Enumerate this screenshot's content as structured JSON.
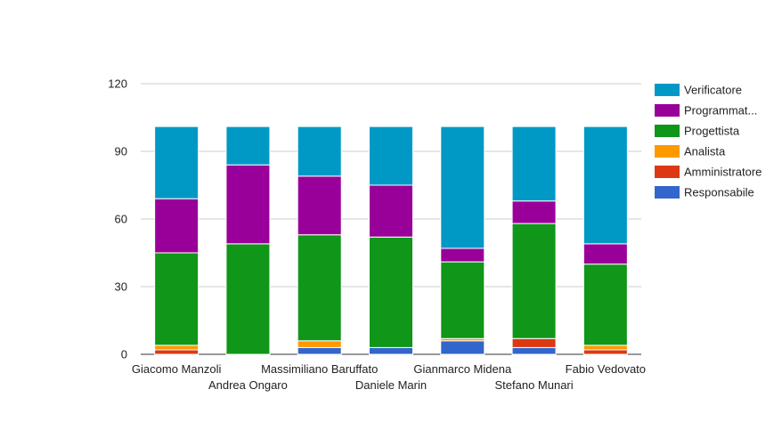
{
  "chart_data": {
    "type": "bar",
    "stacked": true,
    "categories": [
      "Giacomo Manzoli",
      "Andrea Ongaro",
      "Massimiliano Baruffato",
      "Daniele Marin",
      "Gianmarco Midena",
      "Stefano Munari",
      "Fabio Vedovato"
    ],
    "series": [
      {
        "name": "Responsabile",
        "color": "#3366cc",
        "values": [
          0,
          0,
          3,
          3,
          6,
          3,
          0
        ]
      },
      {
        "name": "Amministratore",
        "color": "#dc3912",
        "values": [
          2,
          0,
          0,
          0,
          0,
          4,
          2
        ]
      },
      {
        "name": "Analista",
        "color": "#ff9900",
        "values": [
          2,
          0,
          3,
          0,
          1,
          0,
          2
        ]
      },
      {
        "name": "Progettista",
        "color": "#109618",
        "values": [
          41,
          49,
          47,
          49,
          34,
          51,
          36
        ]
      },
      {
        "name": "Programmat...",
        "color": "#990099",
        "values": [
          24,
          35,
          26,
          23,
          6,
          10,
          9
        ]
      },
      {
        "name": "Verificatore",
        "color": "#0099c6",
        "values": [
          32,
          17,
          22,
          26,
          54,
          33,
          52
        ]
      }
    ],
    "ylim": [
      0,
      120
    ],
    "yticks": [
      "0",
      "30",
      "60",
      "90",
      "120"
    ],
    "grid": true,
    "legend_position": "right",
    "title": "",
    "xlabel": "",
    "ylabel": ""
  }
}
